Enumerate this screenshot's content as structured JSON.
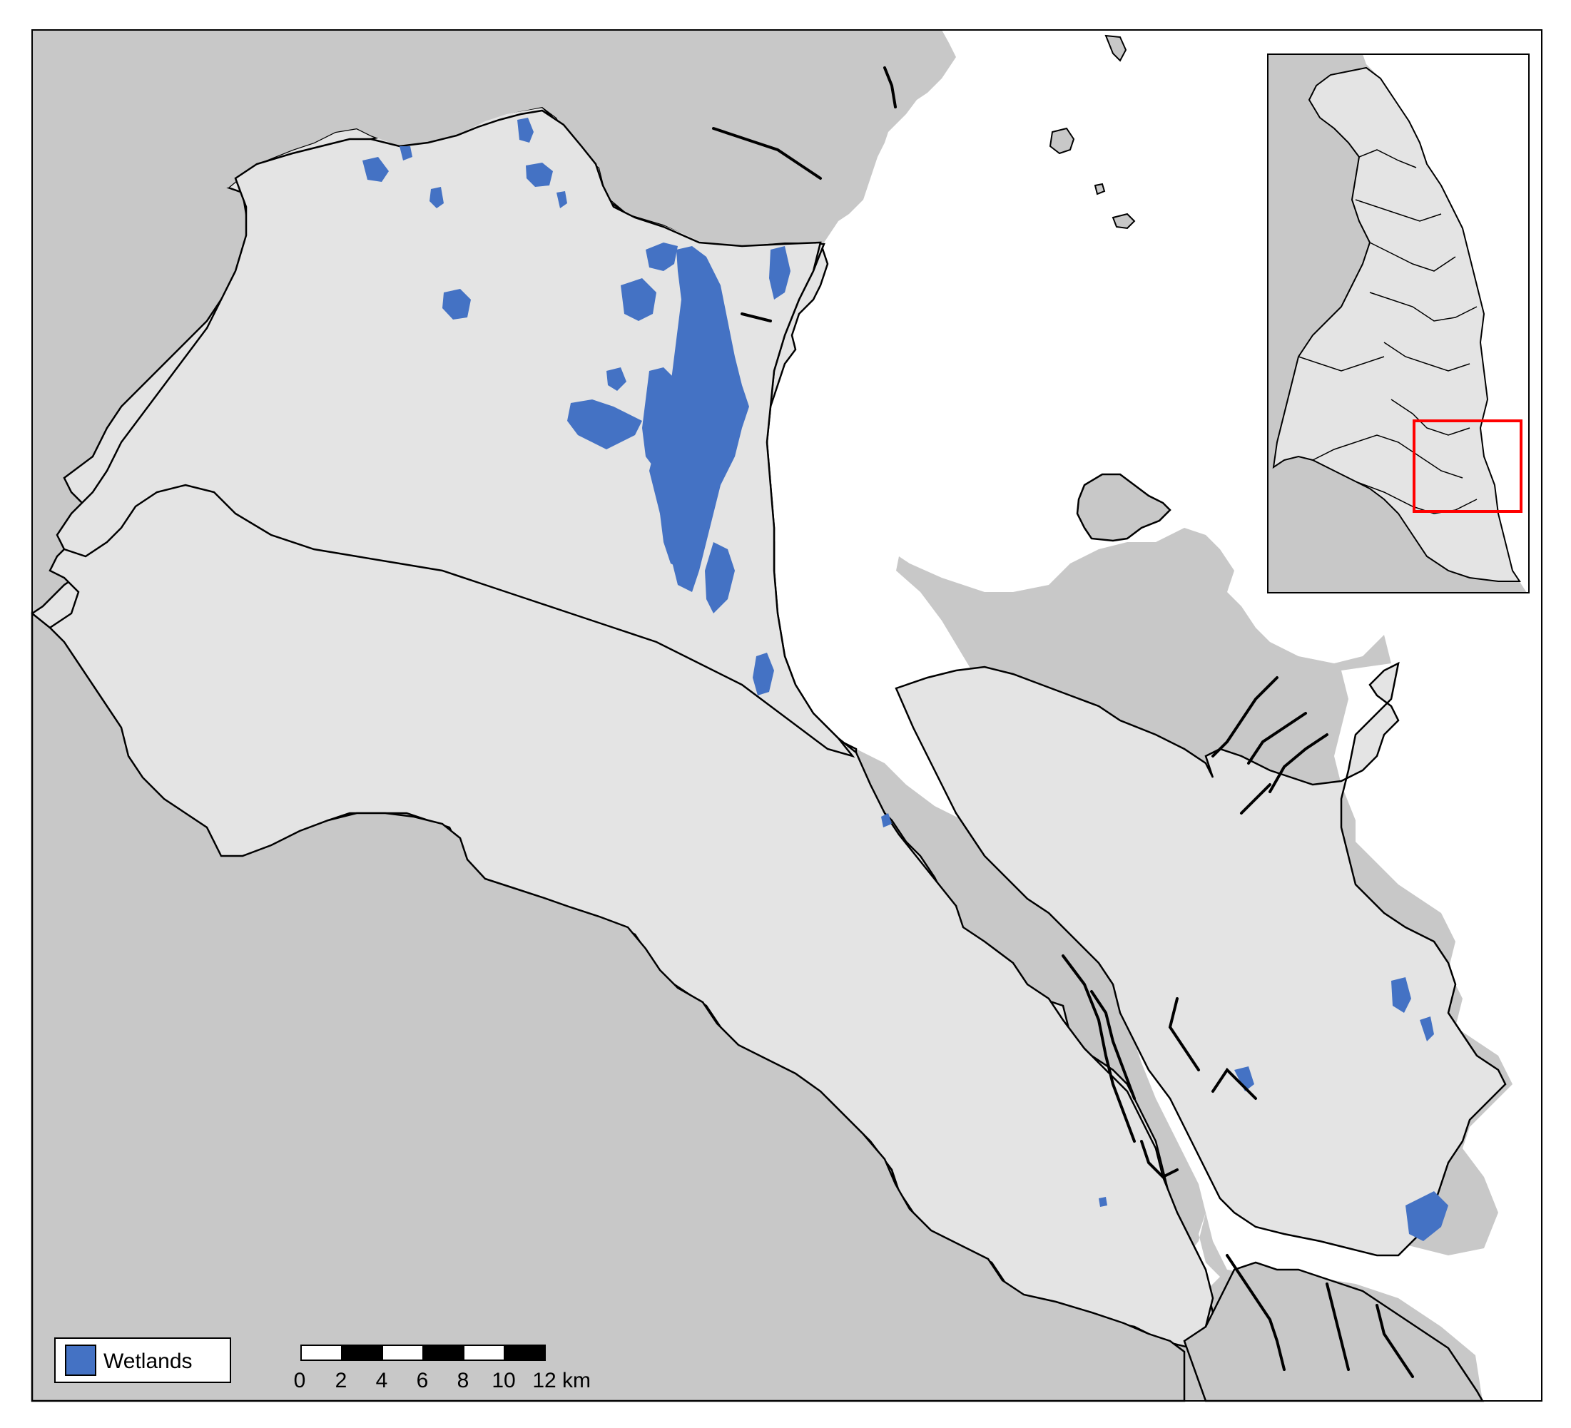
{
  "legend": {
    "items": [
      {
        "label": "Wetlands",
        "color": "#4472C4"
      }
    ]
  },
  "scalebar": {
    "ticks": [
      "0",
      "2",
      "4",
      "6",
      "8",
      "10",
      "12"
    ],
    "unit": "km"
  },
  "colors": {
    "study_area_fill": "#e4e4e4",
    "surrounding_land": "#c8c8c8",
    "water": "#ffffff",
    "wetlands": "#4472C4",
    "boundary_stroke": "#000000",
    "inset_highlight": "#ff0000"
  },
  "inset": {
    "highlight_box": true
  }
}
